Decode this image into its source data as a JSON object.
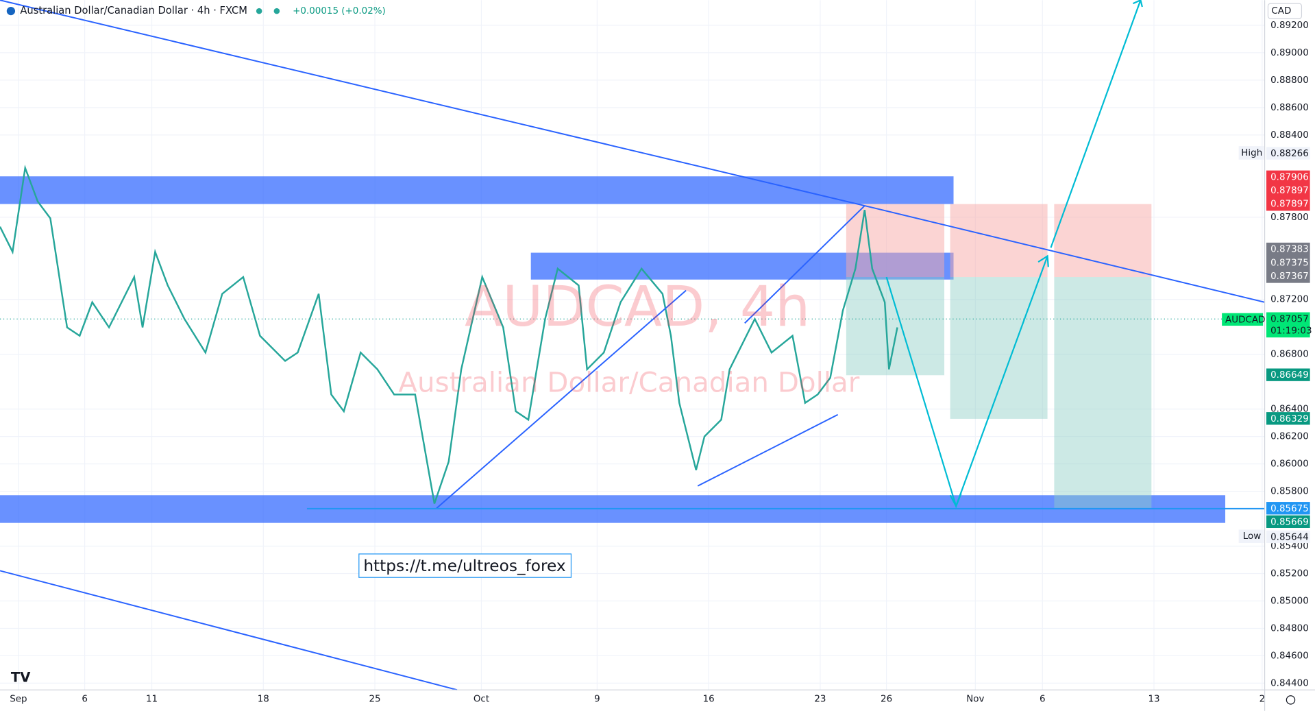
{
  "header": {
    "symbol": "Australian Dollar/Canadian Dollar · 4h · FXCM",
    "change": "+0.00015 (+0.02%)",
    "currency": "CAD"
  },
  "watermark": {
    "ticker": "AUDCAD, 4h",
    "name": "Australian Dollar/Canadian Dollar"
  },
  "link": "https://t.me/ultreos_forex",
  "price_axis": [
    "0.89200",
    "0.89000",
    "0.88800",
    "0.88600",
    "0.88400",
    "0.87800",
    "0.87200",
    "0.86800",
    "0.86400",
    "0.86200",
    "0.86000",
    "0.85800",
    "0.85400",
    "0.85200",
    "0.85000",
    "0.84800",
    "0.84600",
    "0.84400"
  ],
  "time_axis": [
    "Sep",
    "6",
    "11",
    "18",
    "25",
    "Oct",
    "9",
    "16",
    "23",
    "26",
    "Nov",
    "6",
    "13",
    "2"
  ],
  "badges": {
    "high_label": "High",
    "high": "0.88266",
    "red": [
      "0.87906",
      "0.87897",
      "0.87897"
    ],
    "gray": [
      "0.87383",
      "0.87375",
      "0.87367"
    ],
    "symbol_label": "AUDCAD",
    "last": "0.87057",
    "countdown": "01:19:03",
    "target1": "0.86649",
    "target2": "0.86329",
    "line_a": "0.85675",
    "line_b": "0.85669",
    "low_label": "Low",
    "low": "0.85644"
  }
}
